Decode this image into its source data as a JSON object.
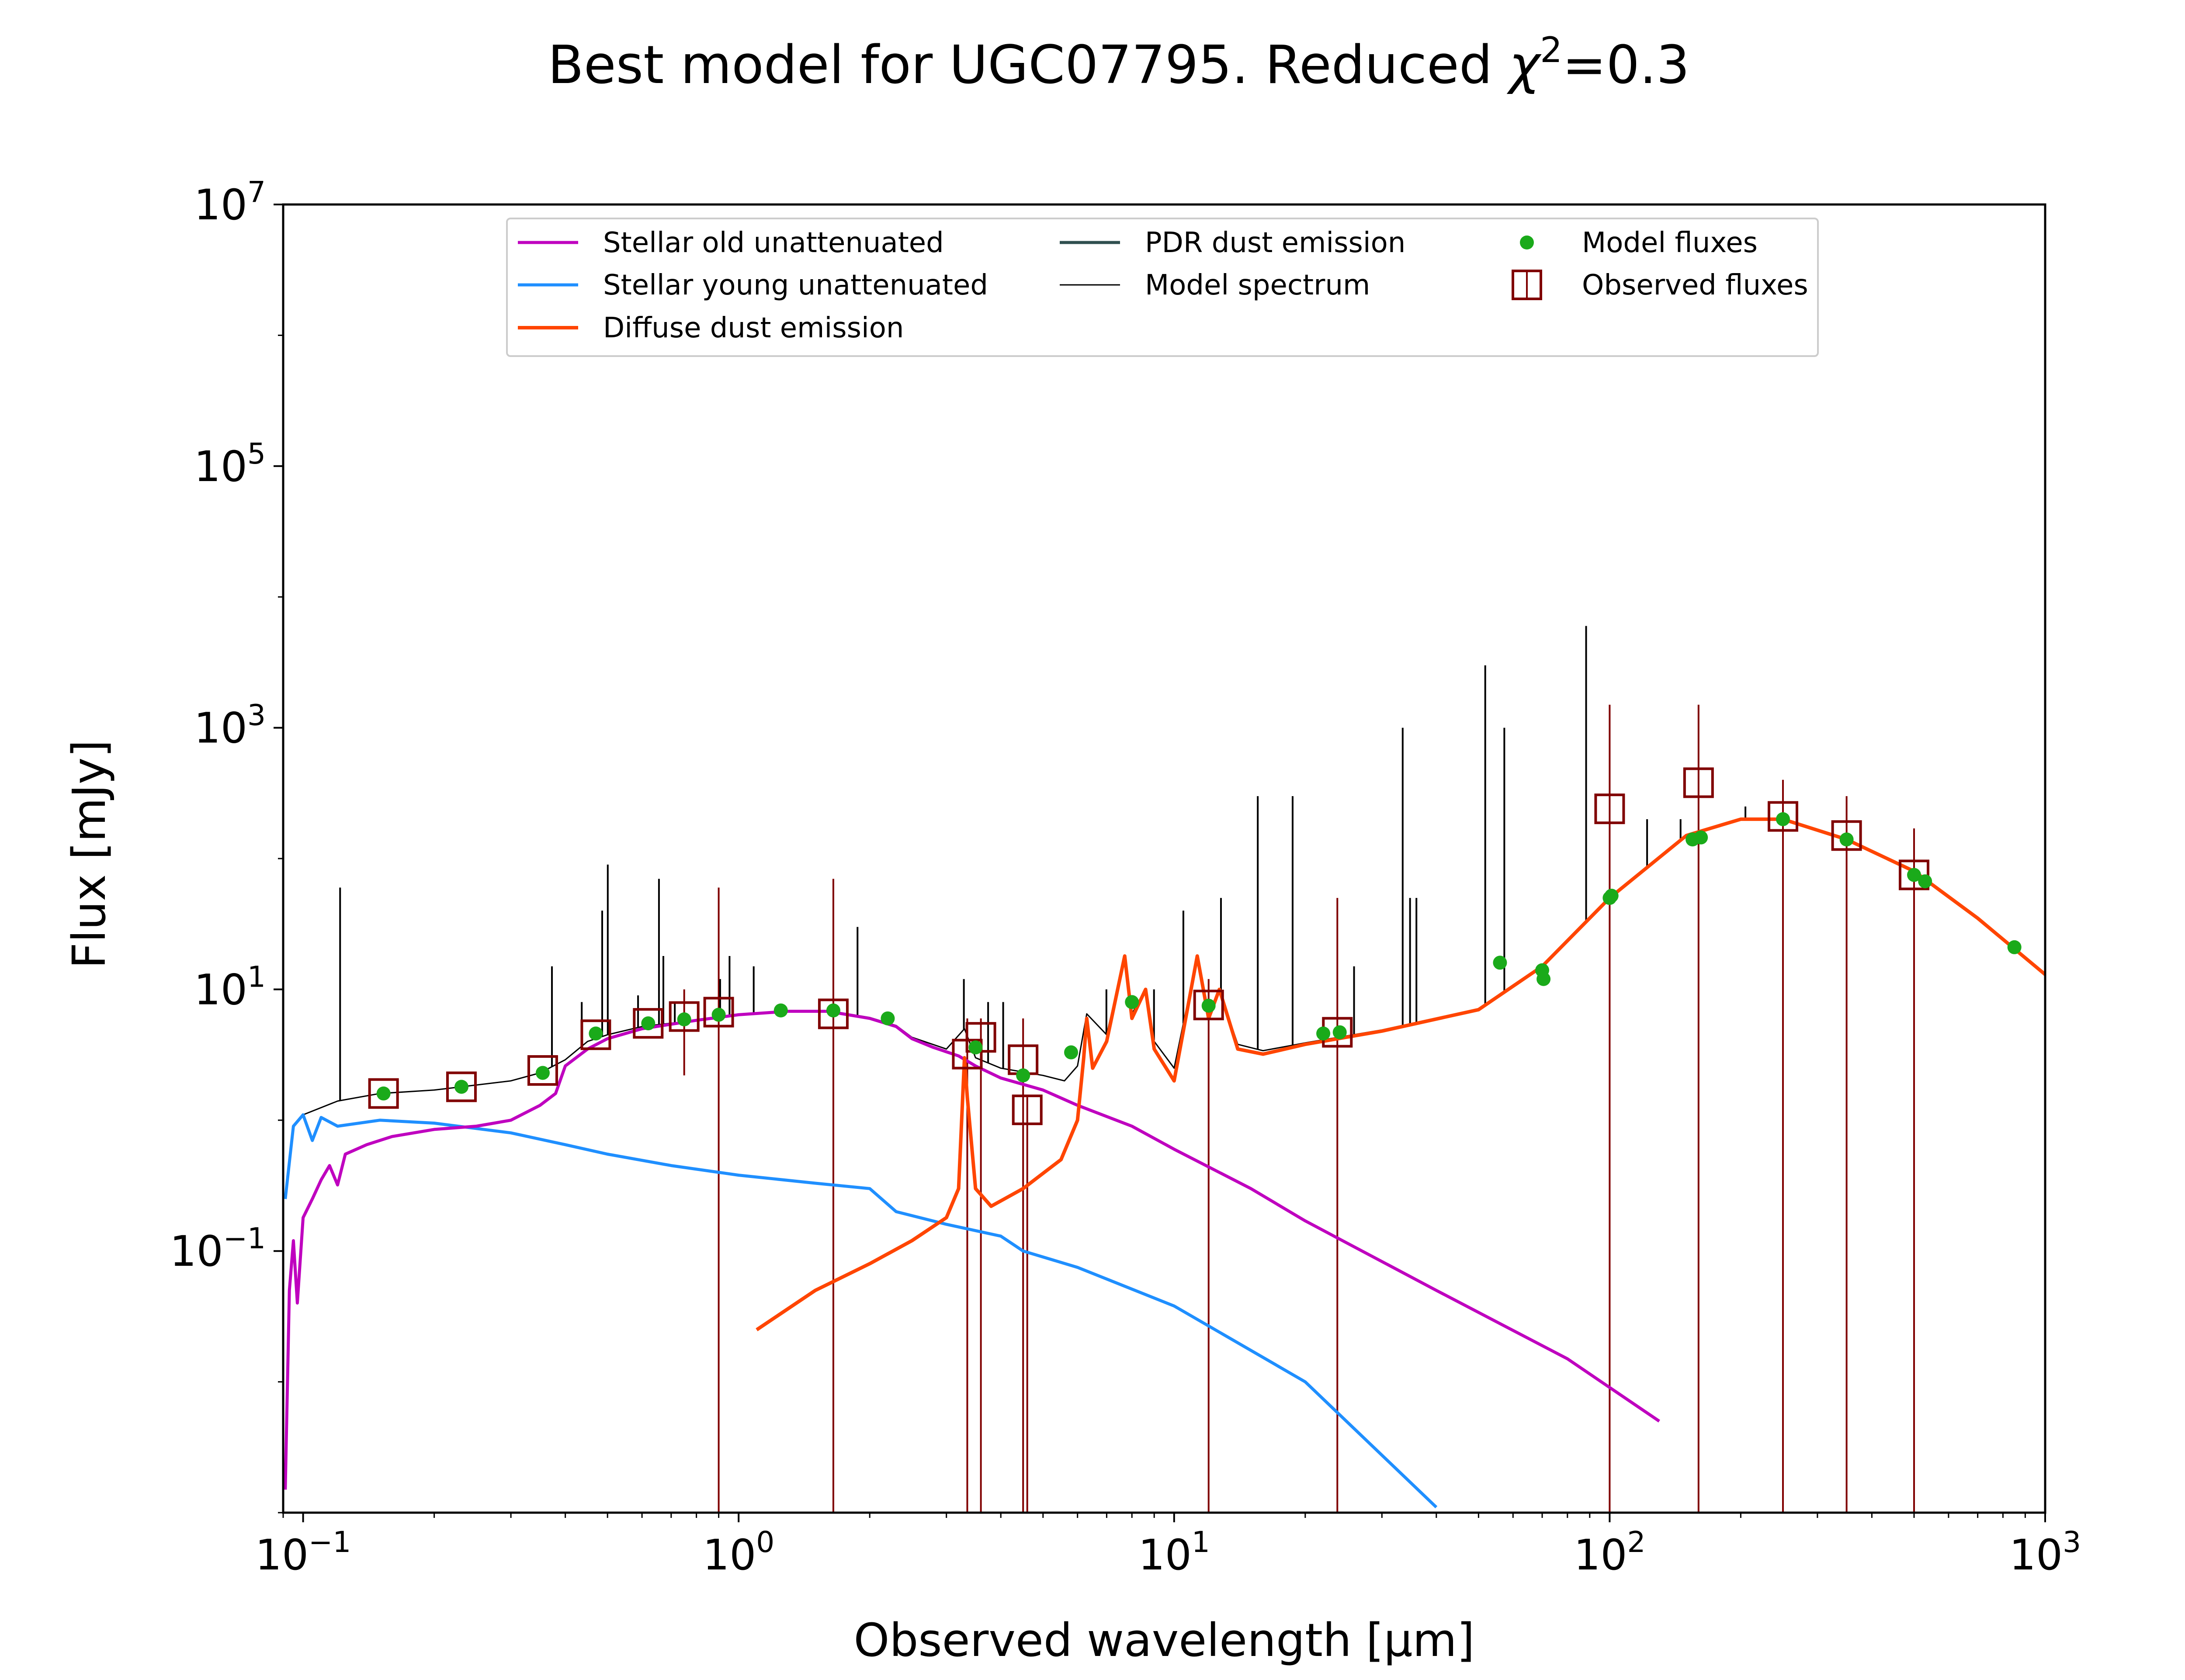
{
  "chart_data": {
    "type": "line",
    "title": "Best model for UGC07795. Reduced χ²=0.3",
    "title_parts": {
      "main": "Best model for UGC07795. Reduced ",
      "chi": "χ",
      "sup": "2",
      "tail": "=0.3"
    },
    "xlabel": "Observed wavelength [μm]",
    "ylabel": "Flux [mJy]",
    "x_scale": "log",
    "y_scale": "log",
    "xlim": [
      0.09,
      1000
    ],
    "ylim": [
      0.001,
      10000000
    ],
    "grid": false,
    "legend_position": "upper center",
    "x_ticks": [
      {
        "value": 0.1,
        "base": "10",
        "exp": "−1"
      },
      {
        "value": 1,
        "base": "10",
        "exp": "0"
      },
      {
        "value": 10,
        "base": "10",
        "exp": "1"
      },
      {
        "value": 100,
        "base": "10",
        "exp": "2"
      },
      {
        "value": 1000,
        "base": "10",
        "exp": "3"
      }
    ],
    "y_ticks": [
      {
        "value": 0.1,
        "base": "10",
        "exp": "−1"
      },
      {
        "value": 10,
        "base": "10",
        "exp": "1"
      },
      {
        "value": 1000,
        "base": "10",
        "exp": "3"
      },
      {
        "value": 100000,
        "base": "10",
        "exp": "5"
      },
      {
        "value": 10000000,
        "base": "10",
        "exp": "7"
      }
    ],
    "series": [
      {
        "name": "Stellar old unattenuated",
        "kind": "line",
        "color": "#bf00bf",
        "width": 7,
        "points": [
          [
            0.091,
            0.0015
          ],
          [
            0.093,
            0.05
          ],
          [
            0.095,
            0.12
          ],
          [
            0.097,
            0.04
          ],
          [
            0.1,
            0.18
          ],
          [
            0.105,
            0.25
          ],
          [
            0.11,
            0.35
          ],
          [
            0.115,
            0.45
          ],
          [
            0.12,
            0.32
          ],
          [
            0.125,
            0.55
          ],
          [
            0.14,
            0.65
          ],
          [
            0.16,
            0.75
          ],
          [
            0.2,
            0.85
          ],
          [
            0.25,
            0.9
          ],
          [
            0.3,
            1.0
          ],
          [
            0.35,
            1.3
          ],
          [
            0.38,
            1.6
          ],
          [
            0.4,
            2.6
          ],
          [
            0.45,
            3.5
          ],
          [
            0.5,
            4.2
          ],
          [
            0.6,
            5.0
          ],
          [
            0.8,
            5.8
          ],
          [
            1.0,
            6.4
          ],
          [
            1.3,
            6.8
          ],
          [
            1.6,
            6.8
          ],
          [
            2.0,
            6.0
          ],
          [
            2.3,
            5.2
          ],
          [
            2.5,
            4.2
          ],
          [
            2.8,
            3.6
          ],
          [
            3.2,
            3.1
          ],
          [
            3.5,
            2.6
          ],
          [
            4.0,
            2.1
          ],
          [
            5.0,
            1.7
          ],
          [
            6.0,
            1.3
          ],
          [
            8.0,
            0.9
          ],
          [
            10.0,
            0.6
          ],
          [
            15.0,
            0.3
          ],
          [
            20.0,
            0.17
          ],
          [
            40.0,
            0.05
          ],
          [
            80.0,
            0.015
          ],
          [
            130.0,
            0.005
          ]
        ]
      },
      {
        "name": "Stellar young unattenuated",
        "kind": "line",
        "color": "#1f8fff",
        "width": 7,
        "points": [
          [
            0.091,
            0.25
          ],
          [
            0.095,
            0.9
          ],
          [
            0.1,
            1.1
          ],
          [
            0.105,
            0.7
          ],
          [
            0.11,
            1.05
          ],
          [
            0.12,
            0.9
          ],
          [
            0.15,
            1.0
          ],
          [
            0.2,
            0.95
          ],
          [
            0.3,
            0.8
          ],
          [
            0.4,
            0.65
          ],
          [
            0.5,
            0.55
          ],
          [
            0.7,
            0.45
          ],
          [
            1.0,
            0.38
          ],
          [
            1.5,
            0.33
          ],
          [
            2.0,
            0.3
          ],
          [
            2.3,
            0.2
          ],
          [
            3.0,
            0.16
          ],
          [
            4.0,
            0.13
          ],
          [
            4.5,
            0.1
          ],
          [
            6.0,
            0.075
          ],
          [
            10.0,
            0.038
          ],
          [
            20.0,
            0.01
          ],
          [
            40.0,
            0.0011
          ]
        ]
      },
      {
        "name": "Diffuse dust emission",
        "kind": "line",
        "color": "#ff4500",
        "width": 8,
        "points": [
          [
            1.1,
            0.025
          ],
          [
            1.5,
            0.05
          ],
          [
            2.0,
            0.08
          ],
          [
            2.5,
            0.12
          ],
          [
            3.0,
            0.18
          ],
          [
            3.2,
            0.3
          ],
          [
            3.3,
            3.0
          ],
          [
            3.35,
            1.5
          ],
          [
            3.5,
            0.3
          ],
          [
            3.8,
            0.22
          ],
          [
            4.5,
            0.3
          ],
          [
            5.5,
            0.5
          ],
          [
            6.0,
            1.0
          ],
          [
            6.2,
            3.0
          ],
          [
            6.3,
            6.0
          ],
          [
            6.5,
            2.5
          ],
          [
            7.0,
            4.0
          ],
          [
            7.7,
            18.0
          ],
          [
            8.0,
            6.0
          ],
          [
            8.6,
            10.0
          ],
          [
            9.0,
            3.5
          ],
          [
            10.0,
            2.0
          ],
          [
            11.3,
            18.0
          ],
          [
            12.0,
            6.0
          ],
          [
            12.7,
            10.0
          ],
          [
            14.0,
            3.5
          ],
          [
            16.0,
            3.2
          ],
          [
            20.0,
            3.8
          ],
          [
            30.0,
            4.8
          ],
          [
            50.0,
            7.0
          ],
          [
            70.0,
            15.0
          ],
          [
            100.0,
            50.0
          ],
          [
            150.0,
            150.0
          ],
          [
            200.0,
            200.0
          ],
          [
            250.0,
            200.0
          ],
          [
            350.0,
            140.0
          ],
          [
            500.0,
            80.0
          ],
          [
            700.0,
            35.0
          ],
          [
            1000.0,
            13.0
          ]
        ]
      },
      {
        "name": "PDR dust emission",
        "kind": "line",
        "color": "#2f4f4f",
        "width": 7,
        "points": []
      },
      {
        "name": "Model spectrum",
        "kind": "line",
        "color": "#000000",
        "width": 3,
        "points": [
          [
            0.1,
            1.1
          ],
          [
            0.12,
            1.4
          ],
          [
            0.15,
            1.6
          ],
          [
            0.2,
            1.7
          ],
          [
            0.3,
            2.0
          ],
          [
            0.35,
            2.3
          ],
          [
            0.4,
            2.9
          ],
          [
            0.45,
            4.0
          ],
          [
            0.5,
            4.5
          ],
          [
            0.6,
            5.2
          ],
          [
            0.8,
            5.8
          ],
          [
            1.0,
            6.4
          ],
          [
            1.3,
            6.9
          ],
          [
            1.6,
            6.9
          ],
          [
            2.0,
            6.1
          ],
          [
            2.3,
            5.3
          ],
          [
            2.5,
            4.3
          ],
          [
            3.0,
            3.5
          ],
          [
            3.3,
            5.0
          ],
          [
            3.5,
            3.0
          ],
          [
            4.0,
            2.5
          ],
          [
            5.0,
            2.2
          ],
          [
            5.6,
            2.0
          ],
          [
            6.0,
            2.6
          ],
          [
            6.3,
            6.5
          ],
          [
            7.0,
            4.5
          ],
          [
            7.7,
            18.0
          ],
          [
            8.0,
            6.5
          ],
          [
            8.6,
            10.0
          ],
          [
            9.0,
            4.0
          ],
          [
            10.0,
            2.5
          ],
          [
            11.3,
            18.0
          ],
          [
            12.0,
            6.5
          ],
          [
            12.7,
            10.0
          ],
          [
            14.0,
            3.8
          ],
          [
            16.0,
            3.4
          ],
          [
            20.0,
            3.9
          ],
          [
            30.0,
            4.9
          ],
          [
            50.0,
            7.1
          ],
          [
            70.0,
            15.0
          ],
          [
            100.0,
            50.0
          ],
          [
            150.0,
            150.0
          ],
          [
            200.0,
            200.0
          ],
          [
            250.0,
            200.0
          ],
          [
            350.0,
            140.0
          ],
          [
            500.0,
            80.0
          ],
          [
            700.0,
            35.0
          ],
          [
            1000.0,
            13.0
          ]
        ],
        "emission_lines": [
          [
            0.1216,
            60.0
          ],
          [
            0.3727,
            15.0
          ],
          [
            0.4363,
            8.0
          ],
          [
            0.4861,
            40.0
          ],
          [
            0.5007,
            90.0
          ],
          [
            0.5876,
            9.0
          ],
          [
            0.6563,
            70.0
          ],
          [
            0.6717,
            18.0
          ],
          [
            0.7136,
            8.0
          ],
          [
            0.9069,
            12.0
          ],
          [
            0.9531,
            18.0
          ],
          [
            1.083,
            15.0
          ],
          [
            1.875,
            30.0
          ],
          [
            3.29,
            12.0
          ],
          [
            3.74,
            8.0
          ],
          [
            4.05,
            8.0
          ],
          [
            6.99,
            10.0
          ],
          [
            8.99,
            10.0
          ],
          [
            10.5,
            40.0
          ],
          [
            12.81,
            50.0
          ],
          [
            15.56,
            300.0
          ],
          [
            18.71,
            300.0
          ],
          [
            25.89,
            15.0
          ],
          [
            33.48,
            1000.0
          ],
          [
            34.81,
            50.0
          ],
          [
            36.0,
            50.0
          ],
          [
            51.8,
            3000.0
          ],
          [
            57.3,
            1000.0
          ],
          [
            88.3,
            6000.0
          ],
          [
            121.9,
            200.0
          ],
          [
            145.5,
            200.0
          ],
          [
            205.0,
            250.0
          ]
        ]
      },
      {
        "name": "Model fluxes",
        "kind": "points",
        "color": "#1aaa1a",
        "points": [
          [
            0.153,
            1.6
          ],
          [
            0.231,
            1.8
          ],
          [
            0.355,
            2.3
          ],
          [
            0.47,
            4.6
          ],
          [
            0.62,
            5.5
          ],
          [
            0.75,
            5.9
          ],
          [
            0.9,
            6.4
          ],
          [
            1.25,
            6.9
          ],
          [
            1.65,
            6.9
          ],
          [
            2.2,
            6.0
          ],
          [
            3.5,
            3.6
          ],
          [
            4.5,
            2.2
          ],
          [
            5.8,
            3.3
          ],
          [
            8.0,
            8.0
          ],
          [
            12.0,
            7.5
          ],
          [
            22.0,
            4.6
          ],
          [
            24.0,
            4.7
          ],
          [
            56.0,
            16.0
          ],
          [
            70.0,
            14.0
          ],
          [
            70.5,
            12.0
          ],
          [
            100.0,
            50.0
          ],
          [
            101.0,
            52.0
          ],
          [
            155.0,
            140.0
          ],
          [
            162.0,
            145.0
          ],
          [
            250.0,
            200.0
          ],
          [
            350.0,
            140.0
          ],
          [
            500.0,
            75.0
          ],
          [
            530.0,
            67.0
          ],
          [
            850.0,
            21.0
          ]
        ]
      },
      {
        "name": "Observed fluxes",
        "kind": "squares",
        "color": "#800000",
        "points": [
          [
            0.153,
            1.6,
            1.6,
            1.6
          ],
          [
            0.231,
            1.8,
            1.8,
            1.8
          ],
          [
            0.355,
            2.4,
            2.4,
            2.4
          ],
          [
            0.47,
            4.5,
            4.5,
            4.5
          ],
          [
            0.62,
            5.5,
            5.5,
            5.5
          ],
          [
            0.75,
            6.2,
            2.2,
            10.0
          ],
          [
            0.9,
            6.7,
            0.001,
            60.0
          ],
          [
            1.65,
            6.5,
            0.001,
            70.0
          ],
          [
            3.35,
            3.2,
            0.001,
            6.0
          ],
          [
            3.6,
            4.3,
            0.001,
            6.0
          ],
          [
            4.5,
            2.9,
            0.001,
            6.0
          ],
          [
            4.6,
            1.2,
            0.001,
            1.5
          ],
          [
            12.0,
            7.6,
            0.001,
            12.0
          ],
          [
            23.7,
            4.7,
            0.001,
            50.0
          ],
          [
            100.0,
            240.0,
            0.001,
            1500.0
          ],
          [
            160.0,
            380.0,
            0.001,
            1500.0
          ],
          [
            250.0,
            210.0,
            0.001,
            400.0
          ],
          [
            350.0,
            150.0,
            0.001,
            300.0
          ],
          [
            500.0,
            75.0,
            0.001,
            170.0
          ]
        ]
      }
    ]
  }
}
